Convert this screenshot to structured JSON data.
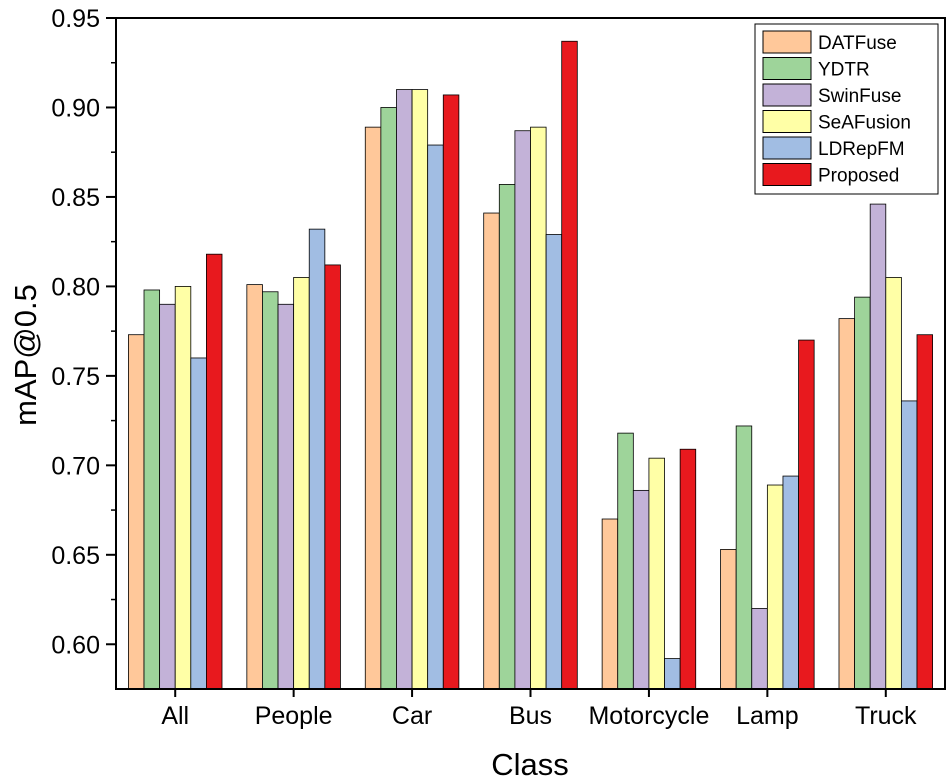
{
  "chart_data": {
    "type": "bar",
    "title": "",
    "xlabel": "Class",
    "ylabel": "mAP@0.5",
    "ylim": [
      0.575,
      0.95
    ],
    "yticks": [
      "0.60",
      "0.65",
      "0.70",
      "0.75",
      "0.80",
      "0.85",
      "0.90",
      "0.95"
    ],
    "categories": [
      "All",
      "People",
      "Car",
      "Bus",
      "Motorcycle",
      "Lamp",
      "Truck"
    ],
    "legend_position": "top-right",
    "series": [
      {
        "name": "DATFuse",
        "color": "#FFC89A",
        "values": [
          0.773,
          0.801,
          0.889,
          0.841,
          0.67,
          0.653,
          0.782
        ]
      },
      {
        "name": "YDTR",
        "color": "#9ED49A",
        "values": [
          0.798,
          0.797,
          0.9,
          0.857,
          0.718,
          0.722,
          0.794
        ]
      },
      {
        "name": "SwinFuse",
        "color": "#C3B2D8",
        "values": [
          0.79,
          0.79,
          0.91,
          0.887,
          0.686,
          0.62,
          0.846
        ]
      },
      {
        "name": "SeAFusion",
        "color": "#FFFFA6",
        "values": [
          0.8,
          0.805,
          0.91,
          0.889,
          0.704,
          0.689,
          0.805
        ]
      },
      {
        "name": "LDRepFM",
        "color": "#A1BDE3",
        "values": [
          0.76,
          0.832,
          0.879,
          0.829,
          0.592,
          0.694,
          0.736
        ]
      },
      {
        "name": "Proposed",
        "color": "#E8191E",
        "values": [
          0.818,
          0.812,
          0.907,
          0.937,
          0.709,
          0.77,
          0.773
        ]
      }
    ]
  }
}
